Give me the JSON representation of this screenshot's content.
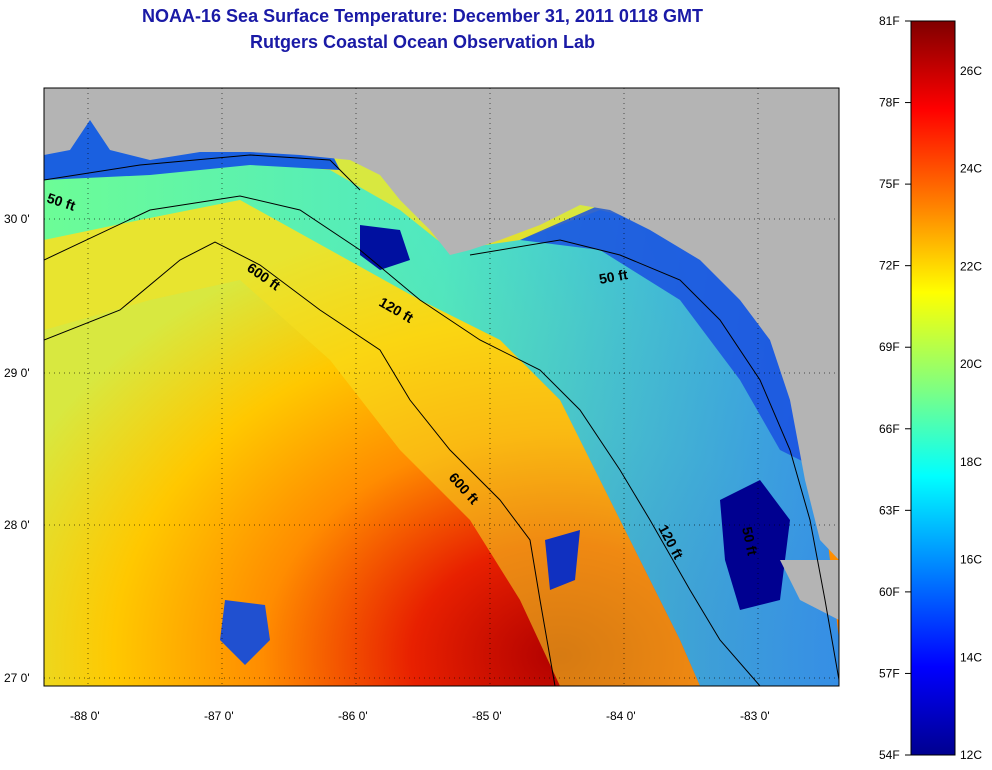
{
  "header": {
    "title": "NOAA-16 Sea Surface Temperature:  December 31, 2011 0118 GMT",
    "subtitle": "Rutgers Coastal Ocean Observation Lab"
  },
  "map": {
    "lon_ticks": [
      "-88 0'",
      "-87 0'",
      "-86 0'",
      "-85 0'",
      "-84 0'",
      "-83 0'"
    ],
    "lat_ticks": [
      "30 0'",
      "29 0'",
      "28 0'",
      "27 0'"
    ],
    "contour_labels": [
      "50 ft",
      "600 ft",
      "120 ft",
      "50 ft",
      "600 ft",
      "120 ft",
      "50 ft"
    ],
    "land_color": "#b4b4b4"
  },
  "colorbar": {
    "fahrenheit_labels": [
      "81F",
      "78F",
      "75F",
      "72F",
      "69F",
      "66F",
      "63F",
      "60F",
      "57F",
      "54F"
    ],
    "celsius_labels": [
      "26C",
      "24C",
      "22C",
      "20C",
      "18C",
      "16C",
      "14C",
      "12C"
    ],
    "colors": [
      "#7f0000",
      "#ff0000",
      "#ff8000",
      "#ffff00",
      "#80ff80",
      "#00ffff",
      "#0080ff",
      "#0000ff",
      "#00008f"
    ]
  }
}
